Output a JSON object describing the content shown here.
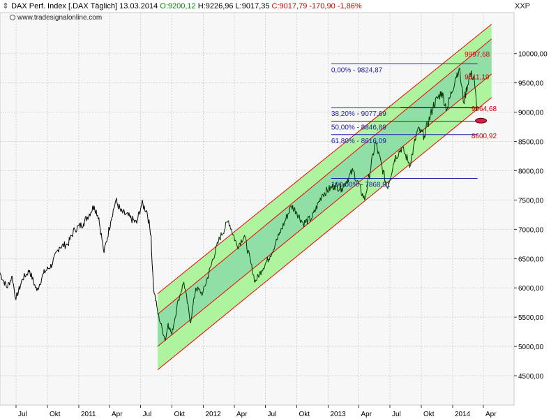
{
  "header": {
    "instrument": "DAX Perf. Index [.DAX  Täglich]",
    "date": "13.03.2014",
    "open": "O:9200,12",
    "high": "H:9226,96",
    "low": "L:9017,35",
    "close": "C:9017,79",
    "change": "-170,90",
    "change_pct": "-1,86%",
    "icon": "chevron-expand-icon",
    "colors": {
      "open": "#008800",
      "close": "#cc0000",
      "text": "#000000"
    }
  },
  "watermark": "www.tradesignalonline.com",
  "axis_code": "XXP",
  "chart_data": {
    "type": "line",
    "ylim": [
      4000,
      10700
    ],
    "y_ticks": [
      "4500,00",
      "5000,00",
      "5500,00",
      "6000,00",
      "6500,00",
      "7000,00",
      "7500,00",
      "8000,00",
      "8500,00",
      "9000,00",
      "9500,00",
      "10000,00"
    ],
    "y_tick_values": [
      4500,
      5000,
      5500,
      6000,
      6500,
      7000,
      7500,
      8000,
      8500,
      9000,
      9500,
      10000
    ],
    "x_range": [
      "2010-05-15",
      "2014-06-30"
    ],
    "x_ticks": [
      {
        "label": "Jul",
        "date": "2010-07-01"
      },
      {
        "label": "Okt",
        "date": "2010-10-01"
      },
      {
        "label": "2011",
        "date": "2011-01-01"
      },
      {
        "label": "Apr",
        "date": "2011-04-01"
      },
      {
        "label": "Jul",
        "date": "2011-07-01"
      },
      {
        "label": "Okt",
        "date": "2011-10-01"
      },
      {
        "label": "2012",
        "date": "2012-01-01"
      },
      {
        "label": "Apr",
        "date": "2012-04-01"
      },
      {
        "label": "Jul",
        "date": "2012-07-01"
      },
      {
        "label": "Okt",
        "date": "2012-10-01"
      },
      {
        "label": "2013",
        "date": "2013-01-01"
      },
      {
        "label": "Apr",
        "date": "2013-04-01"
      },
      {
        "label": "Jul",
        "date": "2013-07-01"
      },
      {
        "label": "Okt",
        "date": "2013-10-01"
      },
      {
        "label": "2014",
        "date": "2014-01-01"
      },
      {
        "label": "Apr",
        "date": "2014-04-01"
      }
    ],
    "grid": true,
    "series": [
      {
        "color": "#000000",
        "color_in_channel": "#003300",
        "points": [
          [
            "2010-05-15",
            6260
          ],
          [
            "2010-06-05",
            6000
          ],
          [
            "2010-06-20",
            6200
          ],
          [
            "2010-07-01",
            5800
          ],
          [
            "2010-07-20",
            6150
          ],
          [
            "2010-08-10",
            6300
          ],
          [
            "2010-08-31",
            5950
          ],
          [
            "2010-09-20",
            6250
          ],
          [
            "2010-10-15",
            6400
          ],
          [
            "2010-11-05",
            6700
          ],
          [
            "2010-11-30",
            6750
          ],
          [
            "2010-12-20",
            7000
          ],
          [
            "2011-01-15",
            7100
          ],
          [
            "2011-02-15",
            7400
          ],
          [
            "2011-03-01",
            7200
          ],
          [
            "2011-03-16",
            6600
          ],
          [
            "2011-04-05",
            7150
          ],
          [
            "2011-04-20",
            7500
          ],
          [
            "2011-05-05",
            7300
          ],
          [
            "2011-06-01",
            7200
          ],
          [
            "2011-06-20",
            7100
          ],
          [
            "2011-07-05",
            7450
          ],
          [
            "2011-07-20",
            7300
          ],
          [
            "2011-08-01",
            6900
          ],
          [
            "2011-08-08",
            6000
          ],
          [
            "2011-08-20",
            5600
          ],
          [
            "2011-09-12",
            5100
          ],
          [
            "2011-09-20",
            5400
          ],
          [
            "2011-10-01",
            5200
          ],
          [
            "2011-10-20",
            5800
          ],
          [
            "2011-11-05",
            6100
          ],
          [
            "2011-11-25",
            5400
          ],
          [
            "2011-12-10",
            6000
          ],
          [
            "2011-12-30",
            5900
          ],
          [
            "2012-01-25",
            6400
          ],
          [
            "2012-02-15",
            6800
          ],
          [
            "2012-03-15",
            7150
          ],
          [
            "2012-04-10",
            6700
          ],
          [
            "2012-05-01",
            6900
          ],
          [
            "2012-06-01",
            6100
          ],
          [
            "2012-06-20",
            6300
          ],
          [
            "2012-07-15",
            6550
          ],
          [
            "2012-08-10",
            6900
          ],
          [
            "2012-09-15",
            7400
          ],
          [
            "2012-10-01",
            7300
          ],
          [
            "2012-10-20",
            7100
          ],
          [
            "2012-11-15",
            7200
          ],
          [
            "2012-12-15",
            7600
          ],
          [
            "2013-01-20",
            7750
          ],
          [
            "2013-02-10",
            7700
          ],
          [
            "2013-03-15",
            8000
          ],
          [
            "2013-04-18",
            7500
          ],
          [
            "2013-05-20",
            8500
          ],
          [
            "2013-06-24",
            7700
          ],
          [
            "2013-07-15",
            8200
          ],
          [
            "2013-08-05",
            8400
          ],
          [
            "2013-08-30",
            8100
          ],
          [
            "2013-09-20",
            8700
          ],
          [
            "2013-10-10",
            8600
          ],
          [
            "2013-11-05",
            9100
          ],
          [
            "2013-11-30",
            9350
          ],
          [
            "2013-12-15",
            9050
          ],
          [
            "2014-01-10",
            9600
          ],
          [
            "2014-01-20",
            9750
          ],
          [
            "2014-02-03",
            9150
          ],
          [
            "2014-02-20",
            9650
          ],
          [
            "2014-03-05",
            9600
          ],
          [
            "2014-03-13",
            9018
          ]
        ]
      }
    ],
    "channel": {
      "start": "2011-08-20",
      "end": "2014-04-25",
      "outer_lower": [
        4600,
        9250
      ],
      "inner_lower": [
        5000,
        9650
      ],
      "mid": [
        5550,
        10250
      ],
      "outer_upper": [
        5900,
        10500
      ],
      "fill_outer": "#aef39e",
      "fill_inner": "#8fdfa6",
      "line_color": "#ee0000"
    },
    "fibonacci": {
      "start": "2013-01-10",
      "end": "2014-03-15",
      "line_color": "#2222aa",
      "levels": [
        {
          "label": "0,00% - 9824,87",
          "value": 9824.87
        },
        {
          "label": "38,20% - 9077,69",
          "value": 9077.69
        },
        {
          "label": "50,00% - 8846,89",
          "value": 8846.89
        },
        {
          "label": "61,80% - 8616,09",
          "value": 8616.09
        },
        {
          "label": "100,00% - 7868,91",
          "value": 7868.91
        }
      ]
    },
    "horizontal_line": {
      "value": 9080,
      "start": "2013-08-01",
      "end": "2014-03-20",
      "color": "#990033"
    },
    "marker": {
      "date": "2014-03-25",
      "value": 8855,
      "color": "#990033"
    },
    "channel_labels": [
      {
        "text": "9997,68",
        "value": 9997.68,
        "date": "2014-02-05"
      },
      {
        "text": "9611,19",
        "value": 9611.19,
        "date": "2014-02-05"
      },
      {
        "text": "9064,68",
        "value": 9064.68,
        "date": "2014-02-25"
      },
      {
        "text": "8600,92",
        "value": 8600.92,
        "date": "2014-02-25"
      }
    ]
  }
}
